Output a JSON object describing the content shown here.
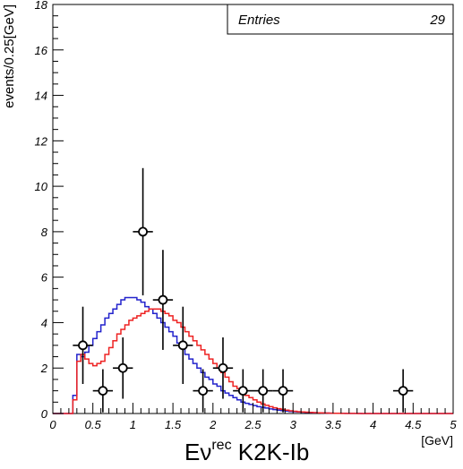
{
  "chart_data": {
    "type": "line",
    "xlabel_main": "Eν",
    "xlabel_sup": "rec",
    "xlabel_suffix": " K2K-Ib",
    "xlabel_unit": "[GeV]",
    "ylabel": "events/0.25[GeV]",
    "xlim": [
      0,
      5
    ],
    "ylim": [
      0,
      18
    ],
    "x_ticks": [
      0,
      0.5,
      1,
      1.5,
      2,
      2.5,
      3,
      3.5,
      4,
      4.5,
      5
    ],
    "x_tick_labels": [
      "0",
      "0.5",
      "1",
      "1.5",
      "2",
      "2.5",
      "3",
      "3.5",
      "4",
      "4.5",
      "5"
    ],
    "y_ticks": [
      0,
      2,
      4,
      6,
      8,
      10,
      12,
      14,
      16,
      18
    ],
    "y_tick_labels": [
      "0",
      "2",
      "4",
      "6",
      "8",
      "10",
      "12",
      "14",
      "16",
      "18"
    ],
    "stats": {
      "label": "Entries",
      "value": "29"
    },
    "colors": {
      "blue": "#2222cc",
      "red": "#ee2222",
      "data": "#000000"
    },
    "data_points": {
      "x": [
        0.375,
        0.625,
        0.875,
        1.125,
        1.375,
        1.625,
        1.875,
        2.125,
        2.375,
        2.625,
        2.875,
        4.375
      ],
      "y": [
        3,
        1,
        2,
        8,
        5,
        3,
        1,
        2,
        1,
        1,
        1,
        1
      ],
      "yerr_low": [
        1.7,
        0.95,
        1.35,
        2.8,
        2.2,
        1.7,
        0.95,
        1.35,
        0.95,
        0.95,
        0.95,
        0.95
      ],
      "yerr_high": [
        1.7,
        0.95,
        1.35,
        2.8,
        2.2,
        1.7,
        0.95,
        1.35,
        0.95,
        0.95,
        0.95,
        0.95
      ],
      "xerr": 0.125
    },
    "series": [
      {
        "color": "blue",
        "bin_width": 0.05,
        "x_start": 0.0,
        "values": [
          0,
          0,
          0,
          0,
          0,
          0.8,
          2.6,
          2.5,
          2.7,
          3.0,
          3.3,
          3.6,
          3.9,
          4.2,
          4.4,
          4.6,
          4.8,
          5.0,
          5.1,
          5.1,
          5.1,
          5.0,
          4.9,
          4.7,
          4.6,
          4.4,
          4.2,
          4.0,
          3.8,
          3.6,
          3.4,
          3.1,
          2.9,
          2.6,
          2.4,
          2.2,
          2.0,
          1.8,
          1.6,
          1.5,
          1.3,
          1.2,
          1.0,
          0.9,
          0.8,
          0.7,
          0.6,
          0.5,
          0.45,
          0.4,
          0.35,
          0.3,
          0.27,
          0.24,
          0.2,
          0.17,
          0.15,
          0.13,
          0.11,
          0.09,
          0.08,
          0.07,
          0.06,
          0.05,
          0.04,
          0.035,
          0.03,
          0.025,
          0.02,
          0.016,
          0.012,
          0.01,
          0.008,
          0.006,
          0.005,
          0.004,
          0.003,
          0.002,
          0.002,
          0.001,
          0.001,
          0.001,
          0,
          0,
          0,
          0,
          0,
          0,
          0,
          0,
          0,
          0,
          0,
          0,
          0,
          0,
          0,
          0,
          0,
          0
        ]
      },
      {
        "color": "red",
        "bin_width": 0.05,
        "x_start": 0.0,
        "values": [
          0,
          0,
          0,
          0,
          0,
          0.6,
          2.3,
          2.6,
          2.4,
          2.2,
          2.1,
          2.2,
          2.3,
          2.6,
          2.9,
          3.2,
          3.5,
          3.7,
          3.9,
          4.1,
          4.2,
          4.3,
          4.4,
          4.5,
          4.6,
          4.6,
          4.6,
          4.5,
          4.4,
          4.3,
          4.1,
          4.0,
          3.8,
          3.6,
          3.4,
          3.2,
          3.0,
          2.8,
          2.6,
          2.4,
          2.2,
          2.0,
          1.8,
          1.6,
          1.4,
          1.2,
          1.1,
          0.9,
          0.8,
          0.7,
          0.6,
          0.5,
          0.42,
          0.36,
          0.3,
          0.25,
          0.21,
          0.18,
          0.15,
          0.12,
          0.1,
          0.08,
          0.07,
          0.06,
          0.05,
          0.04,
          0.032,
          0.026,
          0.02,
          0.016,
          0.012,
          0.009,
          0.007,
          0.005,
          0.004,
          0.003,
          0.002,
          0.002,
          0.001,
          0.001,
          0,
          0,
          0,
          0,
          0,
          0,
          0,
          0,
          0,
          0,
          0,
          0,
          0,
          0,
          0,
          0,
          0,
          0,
          0,
          0
        ]
      }
    ]
  }
}
